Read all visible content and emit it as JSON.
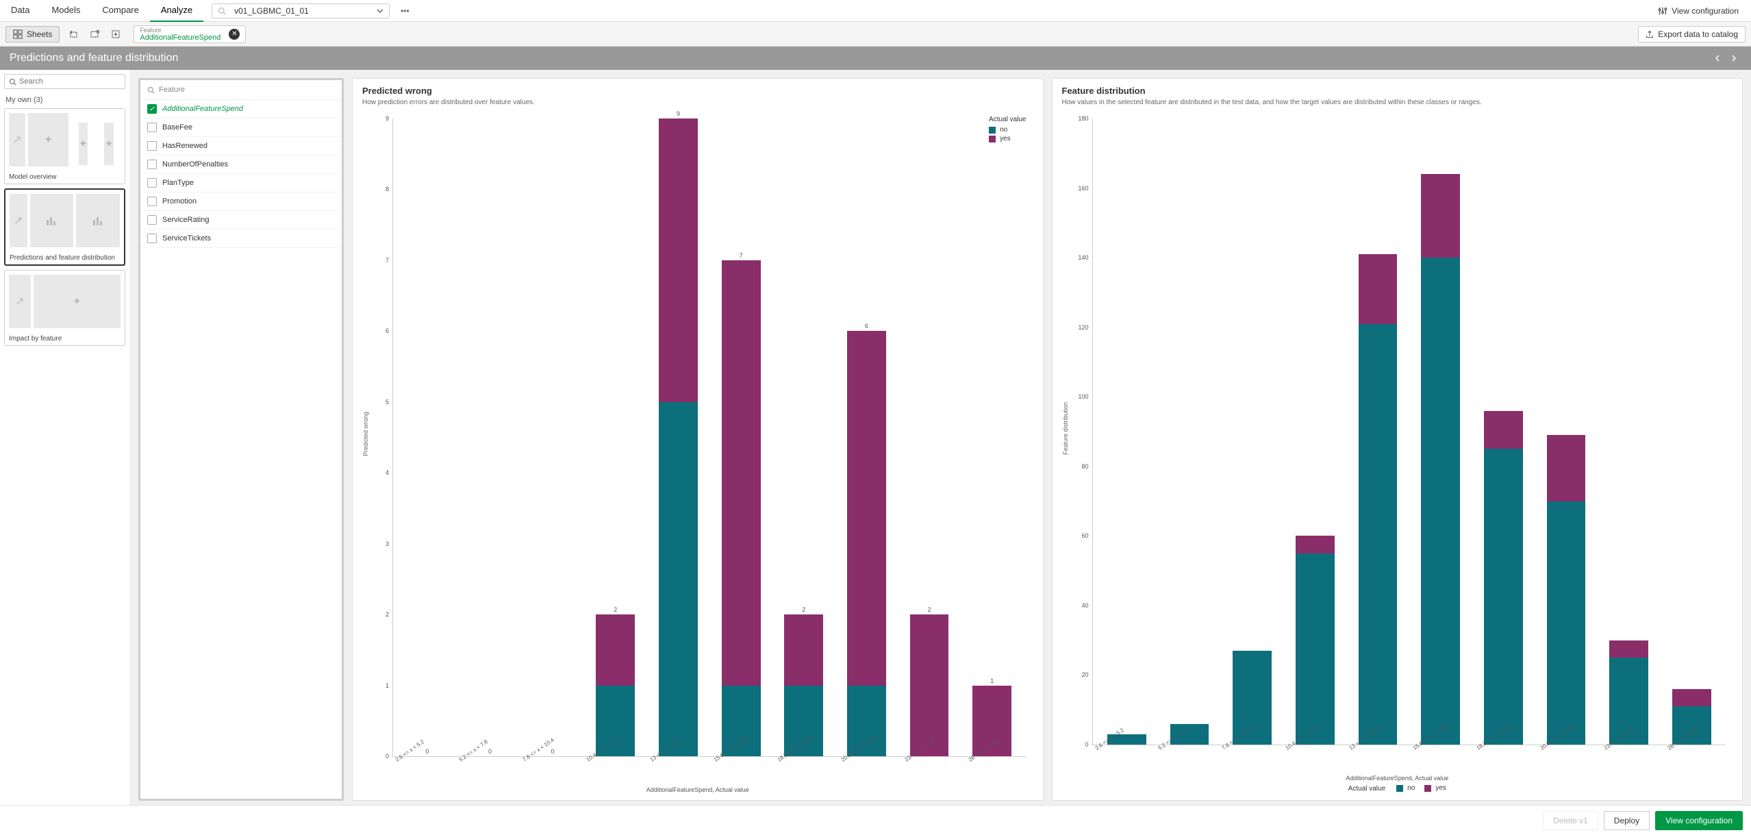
{
  "colors": {
    "teal": "#0d6f7c",
    "magenta": "#8a2e6a",
    "accent": "#009845"
  },
  "tabs": [
    "Data",
    "Models",
    "Compare",
    "Analyze"
  ],
  "active_tab": "Analyze",
  "model_name": "v01_LGBMC_01_01",
  "view_config_label": "View configuration",
  "toolbar": {
    "sheets_label": "Sheets",
    "chip_label": "Feature",
    "chip_value": "AdditionalFeatureSpend",
    "export_label": "Export data to catalog"
  },
  "page_title": "Predictions and feature distribution",
  "sidebar": {
    "search_placeholder": "Search",
    "group_label": "My own (3)",
    "sheets": [
      {
        "title": "Model overview",
        "active": false
      },
      {
        "title": "Predictions and feature distribution",
        "active": true
      },
      {
        "title": "Impact by feature",
        "active": false
      }
    ]
  },
  "feature_panel": {
    "search_label": "Feature",
    "items": [
      {
        "label": "AdditionalFeatureSpend",
        "checked": true
      },
      {
        "label": "BaseFee",
        "checked": false
      },
      {
        "label": "HasRenewed",
        "checked": false
      },
      {
        "label": "NumberOfPenalties",
        "checked": false
      },
      {
        "label": "PlanType",
        "checked": false
      },
      {
        "label": "Promotion",
        "checked": false
      },
      {
        "label": "ServiceRating",
        "checked": false
      },
      {
        "label": "ServiceTickets",
        "checked": false
      }
    ]
  },
  "chart_left": {
    "title": "Predicted wrong",
    "subtitle": "How prediction errors are distributed over feature values.",
    "y_label": "Predicted wrong",
    "x_label": "AdditionalFeatureSpend, Actual value",
    "y_max": 9,
    "y_ticks": [
      0,
      1,
      2,
      3,
      4,
      5,
      6,
      7,
      8,
      9
    ],
    "legend_title": "Actual value",
    "legend": [
      {
        "label": "no",
        "color": "#0d6f7c"
      },
      {
        "label": "yes",
        "color": "#8a2e6a"
      }
    ],
    "categories": [
      "2.6 <= x < 5.2",
      "5.2 <= x < 7.8",
      "7.8 <= x < 10.4",
      "10.4 <= x < 13",
      "13 <= x < 15.6",
      "15.6 <= x < 18.2",
      "18.2 <= x < 20.8",
      "20.8 <= x < 23.4",
      "23.4 <= x < 26",
      "26 <= x < 28.6"
    ],
    "bars": [
      {
        "no": 0,
        "yes": 0,
        "total": 0
      },
      {
        "no": 0,
        "yes": 0,
        "total": 0
      },
      {
        "no": 0,
        "yes": 0,
        "total": 0
      },
      {
        "no": 1,
        "yes": 1,
        "total": 2
      },
      {
        "no": 5,
        "yes": 4,
        "total": 9
      },
      {
        "no": 1,
        "yes": 6,
        "total": 7
      },
      {
        "no": 1,
        "yes": 1,
        "total": 2
      },
      {
        "no": 1,
        "yes": 5,
        "total": 6
      },
      {
        "no": 0,
        "yes": 2,
        "total": 2
      },
      {
        "no": 0,
        "yes": 1,
        "total": 1
      }
    ]
  },
  "chart_right": {
    "title": "Feature distribution",
    "subtitle": "How values in the selected feature are distributed in the test data, and how the target values are distributed within these classes or ranges.",
    "y_label": "Feature distribution",
    "x_label": "AdditionalFeatureSpend, Actual value",
    "y_max": 180,
    "y_ticks": [
      0,
      20,
      40,
      60,
      80,
      100,
      120,
      140,
      160,
      180
    ],
    "legend_title": "Actual value",
    "legend": [
      {
        "label": "no",
        "color": "#0d6f7c"
      },
      {
        "label": "yes",
        "color": "#8a2e6a"
      }
    ],
    "categories": [
      "2.6 <= x < 5.2",
      "5.2 <= x < 7.8",
      "7.8 <= x < 10.4",
      "10.4 <= x < 13",
      "13 <= x < 15.6",
      "15.6 <= x < 18.2",
      "18.2 <= x < 20.8",
      "20.8 <= x < 23.4",
      "23.4 <= x < 26",
      "26 <= x < 28.6"
    ],
    "bars": [
      {
        "no": 3,
        "yes": 0
      },
      {
        "no": 6,
        "yes": 0
      },
      {
        "no": 27,
        "yes": 0
      },
      {
        "no": 55,
        "yes": 5
      },
      {
        "no": 121,
        "yes": 20
      },
      {
        "no": 140,
        "yes": 24
      },
      {
        "no": 85,
        "yes": 11
      },
      {
        "no": 70,
        "yes": 19
      },
      {
        "no": 25,
        "yes": 5
      },
      {
        "no": 11,
        "yes": 5
      }
    ]
  },
  "footer": {
    "delete_label": "Delete v1",
    "deploy_label": "Deploy",
    "view_config_label": "View configuration"
  }
}
